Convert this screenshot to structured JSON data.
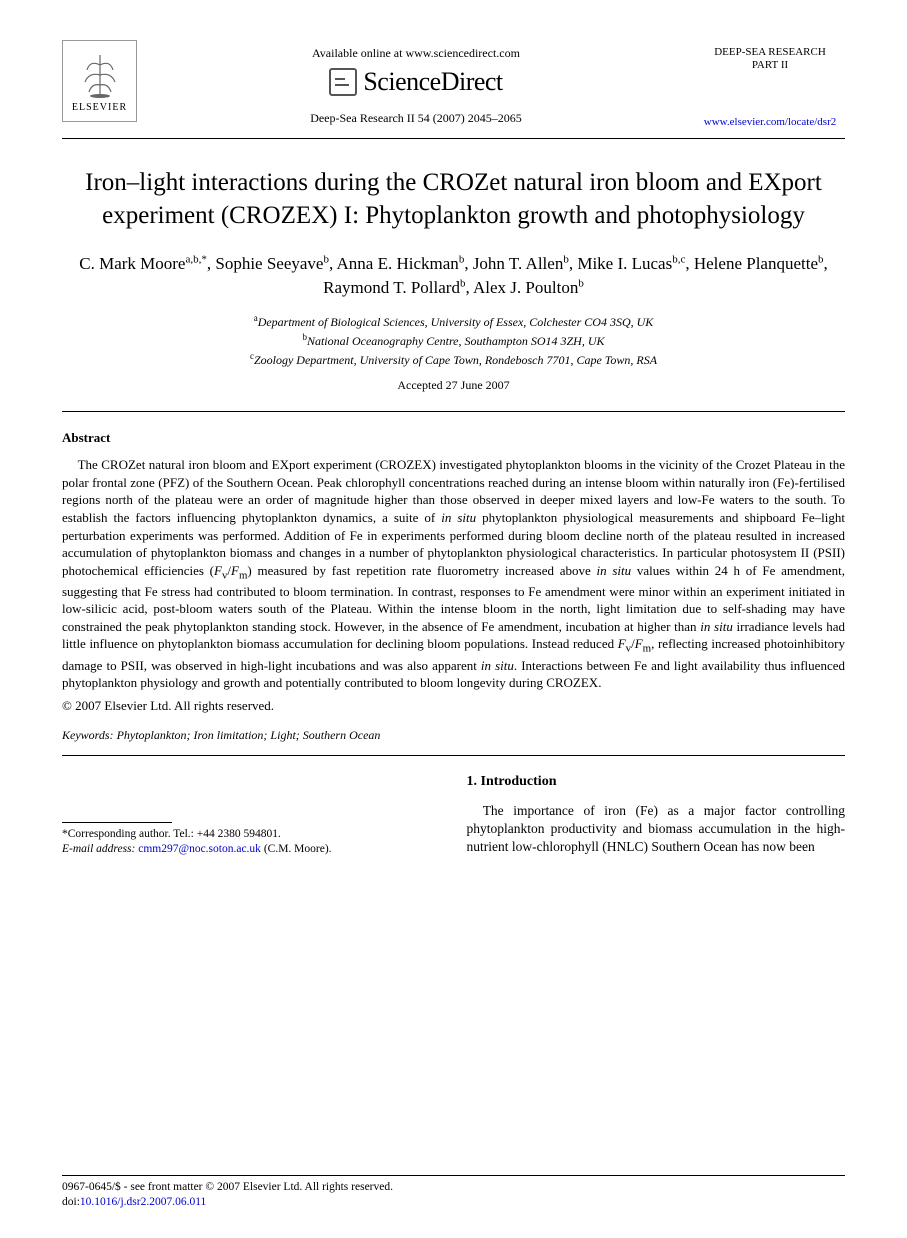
{
  "header": {
    "available_text": "Available online at www.sciencedirect.com",
    "sd_brand": "ScienceDirect",
    "journal_ref": "Deep-Sea Research II 54 (2007) 2045–2065",
    "publisher_label": "ELSEVIER",
    "journal_name_line1": "DEEP-SEA RESEARCH",
    "journal_name_line2": "PART II",
    "journal_url": "www.elsevier.com/locate/dsr2"
  },
  "title": "Iron–light interactions during the CROZet natural iron bloom and EXport experiment (CROZEX) I: Phytoplankton growth and photophysiology",
  "authors_html": "C. Mark Moore<sup>a,b,*</sup>, Sophie Seeyave<sup>b</sup>, Anna E. Hickman<sup>b</sup>, John T. Allen<sup>b</sup>, Mike I. Lucas<sup>b,c</sup>, Helene Planquette<sup>b</sup>, Raymond T. Pollard<sup>b</sup>, Alex J. Poulton<sup>b</sup>",
  "affiliations": {
    "a": "Department of Biological Sciences, University of Essex, Colchester CO4 3SQ, UK",
    "b": "National Oceanography Centre, Southampton SO14 3ZH, UK",
    "c": "Zoology Department, University of Cape Town, Rondebosch 7701, Cape Town, RSA"
  },
  "accepted": "Accepted 27 June 2007",
  "abstract": {
    "heading": "Abstract",
    "body_html": "The CROZet natural iron bloom and EXport experiment (CROZEX) investigated phytoplankton blooms in the vicinity of the Crozet Plateau in the polar frontal zone (PFZ) of the Southern Ocean. Peak chlorophyll concentrations reached during an intense bloom within naturally iron (Fe)-fertilised regions north of the plateau were an order of magnitude higher than those observed in deeper mixed layers and low-Fe waters to the south. To establish the factors influencing phytoplankton dynamics, a suite of <i>in situ</i> phytoplankton physiological measurements and shipboard Fe–light perturbation experiments was performed. Addition of Fe in experiments performed during bloom decline north of the plateau resulted in increased accumulation of phytoplankton biomass and changes in a number of phytoplankton physiological characteristics. In particular photosystem II (PSII) photochemical efficiencies (<i>F</i><sub>v</sub>/<i>F</i><sub>m</sub>) measured by fast repetition rate fluorometry increased above <i>in situ</i> values within 24 h of Fe amendment, suggesting that Fe stress had contributed to bloom termination. In contrast, responses to Fe amendment were minor within an experiment initiated in low-silicic acid, post-bloom waters south of the Plateau. Within the intense bloom in the north, light limitation due to self-shading may have constrained the peak phytoplankton standing stock. However, in the absence of Fe amendment, incubation at higher than <i>in situ</i> irradiance levels had little influence on phytoplankton biomass accumulation for declining bloom populations. Instead reduced <i>F</i><sub>v</sub>/<i>F</i><sub>m</sub>, reflecting increased photoinhibitory damage to PSII, was observed in high-light incubations and was also apparent <i>in situ</i>. Interactions between Fe and light availability thus influenced phytoplankton physiology and growth and potentially contributed to bloom longevity during CROZEX.",
    "copyright": "© 2007 Elsevier Ltd. All rights reserved."
  },
  "keywords": {
    "label": "Keywords:",
    "list": "Phytoplankton; Iron limitation; Light; Southern Ocean"
  },
  "intro": {
    "heading": "1.  Introduction",
    "para": "The importance of iron (Fe) as a major factor controlling phytoplankton productivity and biomass accumulation in the high-nutrient low-chlorophyll (HNLC) Southern Ocean has now been"
  },
  "footnote": {
    "corresponding": "*Corresponding author. Tel.: +44 2380 594801.",
    "email_label": "E-mail address:",
    "email": "cmm297@noc.soton.ac.uk",
    "email_name": "(C.M. Moore)."
  },
  "footer": {
    "issn_line": "0967-0645/$ - see front matter © 2007 Elsevier Ltd. All rights reserved.",
    "doi_label": "doi:",
    "doi": "10.1016/j.dsr2.2007.06.011"
  },
  "colors": {
    "text": "#000000",
    "link": "#0000cc",
    "background": "#ffffff",
    "rule": "#000000"
  },
  "typography": {
    "body_font": "Times New Roman",
    "title_size_pt": 19,
    "authors_size_pt": 13,
    "abstract_size_pt": 10,
    "footnote_size_pt": 8.5
  }
}
